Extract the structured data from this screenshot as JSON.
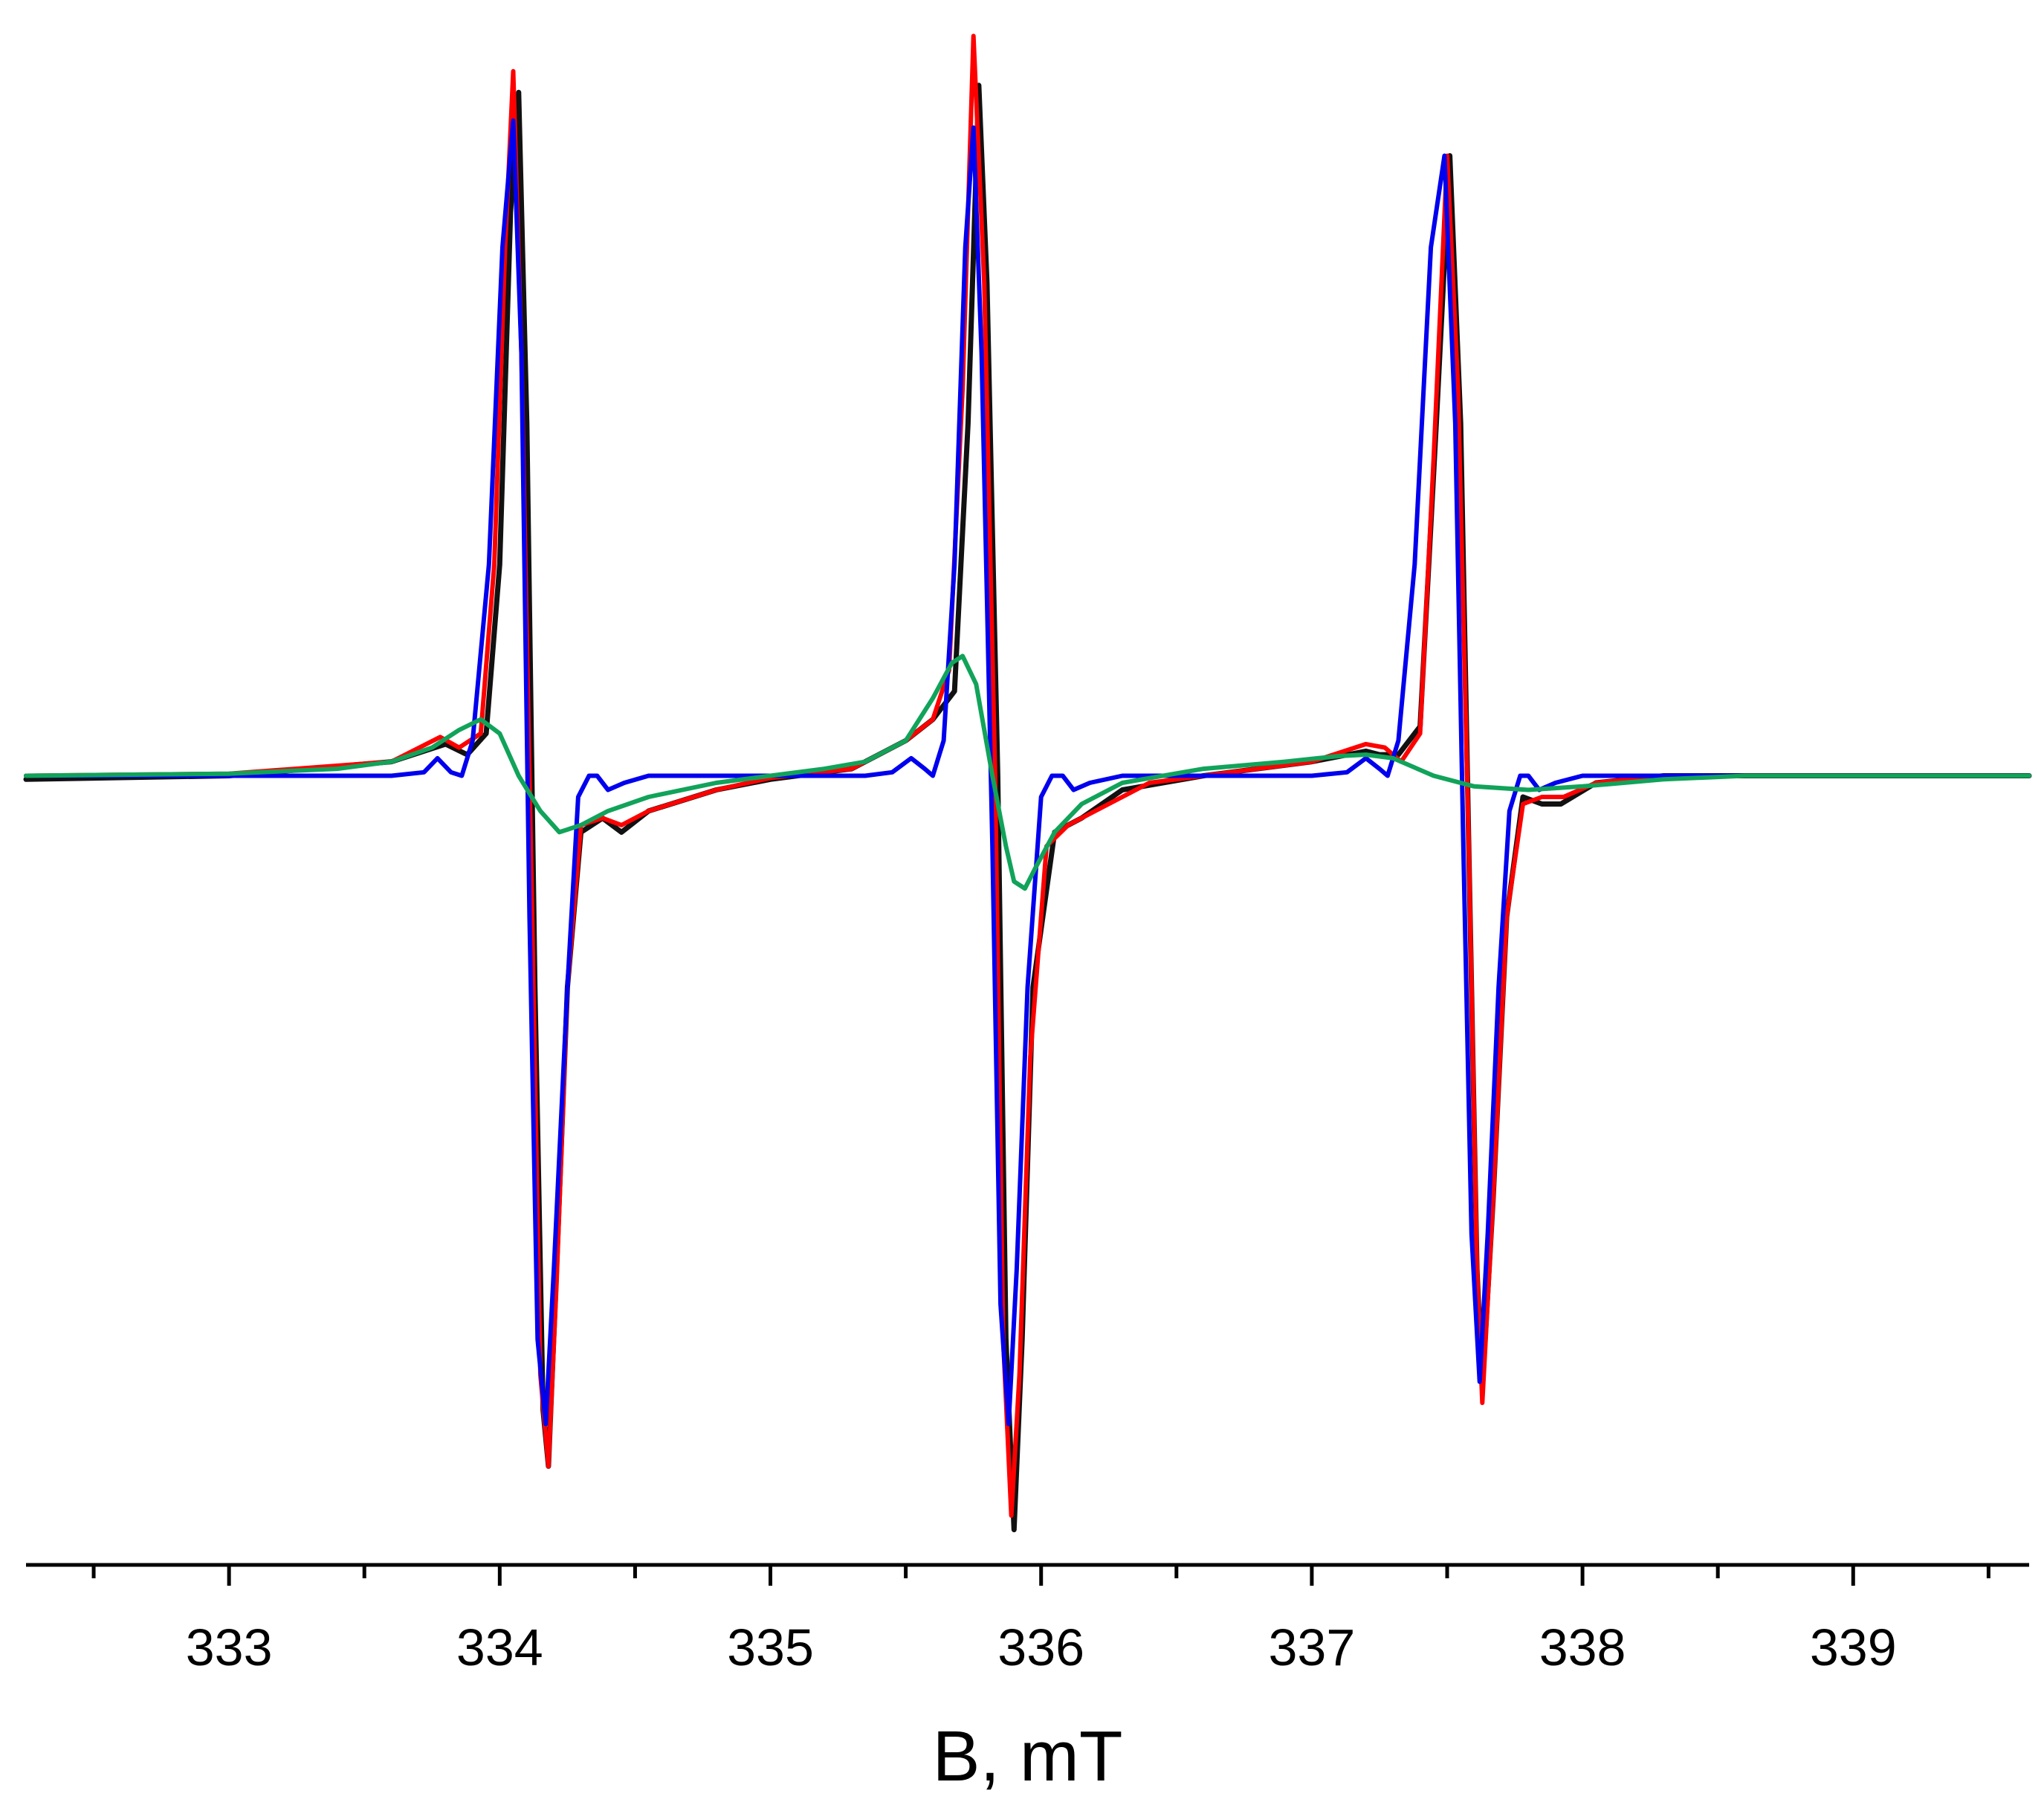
{
  "chart_data": {
    "type": "line",
    "title": "",
    "xlabel": "B, mT",
    "ylabel": "",
    "xlim": [
      332.25,
      339.65
    ],
    "ylim": [
      -1.12,
      1.08
    ],
    "grid": false,
    "legend": "none",
    "x_ticks": [
      333,
      334,
      335,
      336,
      337,
      338,
      339
    ],
    "x_tick_labels": [
      "333",
      "334",
      "335",
      "336",
      "337",
      "338",
      "339"
    ],
    "x_minor_ticks": [
      332.5,
      333.5,
      334.5,
      335.5,
      336.5,
      337.5,
      338.5,
      339.5
    ],
    "series": [
      {
        "key": "experimental",
        "color": "#111111",
        "points": [
          [
            332.25,
            -0.005
          ],
          [
            333.0,
            0.0
          ],
          [
            333.6,
            0.02
          ],
          [
            333.8,
            0.045
          ],
          [
            333.88,
            0.03
          ],
          [
            333.95,
            0.06
          ],
          [
            334.0,
            0.3
          ],
          [
            334.04,
            0.8
          ],
          [
            334.07,
            0.97
          ],
          [
            334.1,
            0.5
          ],
          [
            334.13,
            -0.3
          ],
          [
            334.16,
            -0.9
          ],
          [
            334.18,
            -0.98
          ],
          [
            334.21,
            -0.7
          ],
          [
            334.25,
            -0.3
          ],
          [
            334.3,
            -0.08
          ],
          [
            334.38,
            -0.06
          ],
          [
            334.45,
            -0.08
          ],
          [
            334.55,
            -0.05
          ],
          [
            334.8,
            -0.02
          ],
          [
            335.0,
            -0.005
          ],
          [
            335.3,
            0.01
          ],
          [
            335.5,
            0.05
          ],
          [
            335.6,
            0.08
          ],
          [
            335.68,
            0.12
          ],
          [
            335.73,
            0.5
          ],
          [
            335.77,
            0.98
          ],
          [
            335.8,
            0.7
          ],
          [
            335.84,
            0.0
          ],
          [
            335.87,
            -0.8
          ],
          [
            335.9,
            -1.07
          ],
          [
            335.93,
            -0.8
          ],
          [
            335.97,
            -0.3
          ],
          [
            336.05,
            -0.08
          ],
          [
            336.15,
            -0.06
          ],
          [
            336.3,
            -0.02
          ],
          [
            336.6,
            0.0
          ],
          [
            337.0,
            0.02
          ],
          [
            337.2,
            0.035
          ],
          [
            337.25,
            0.03
          ],
          [
            337.32,
            0.03
          ],
          [
            337.4,
            0.07
          ],
          [
            337.46,
            0.5
          ],
          [
            337.51,
            0.88
          ],
          [
            337.55,
            0.5
          ],
          [
            337.58,
            -0.1
          ],
          [
            337.61,
            -0.7
          ],
          [
            337.63,
            -0.87
          ],
          [
            337.67,
            -0.6
          ],
          [
            337.72,
            -0.2
          ],
          [
            337.78,
            -0.03
          ],
          [
            337.85,
            -0.04
          ],
          [
            337.92,
            -0.04
          ],
          [
            338.05,
            -0.01
          ],
          [
            338.3,
            0.0
          ],
          [
            339.0,
            0.0
          ],
          [
            339.65,
            0.0
          ]
        ]
      },
      {
        "key": "simulation-total",
        "color": "#ff0000",
        "points": [
          [
            332.25,
            0.0
          ],
          [
            333.0,
            0.003
          ],
          [
            333.6,
            0.02
          ],
          [
            333.78,
            0.055
          ],
          [
            333.85,
            0.04
          ],
          [
            333.93,
            0.06
          ],
          [
            333.98,
            0.3
          ],
          [
            334.02,
            0.75
          ],
          [
            334.05,
            1.0
          ],
          [
            334.08,
            0.6
          ],
          [
            334.12,
            -0.2
          ],
          [
            334.15,
            -0.85
          ],
          [
            334.18,
            -0.98
          ],
          [
            334.21,
            -0.72
          ],
          [
            334.25,
            -0.3
          ],
          [
            334.3,
            -0.07
          ],
          [
            334.38,
            -0.06
          ],
          [
            334.45,
            -0.07
          ],
          [
            334.55,
            -0.05
          ],
          [
            334.8,
            -0.02
          ],
          [
            335.0,
            -0.003
          ],
          [
            335.3,
            0.01
          ],
          [
            335.5,
            0.05
          ],
          [
            335.6,
            0.08
          ],
          [
            335.66,
            0.15
          ],
          [
            335.71,
            0.55
          ],
          [
            335.75,
            1.05
          ],
          [
            335.79,
            0.7
          ],
          [
            335.83,
            0.0
          ],
          [
            335.86,
            -0.8
          ],
          [
            335.89,
            -1.05
          ],
          [
            335.92,
            -0.85
          ],
          [
            335.96,
            -0.4
          ],
          [
            336.02,
            -0.1
          ],
          [
            336.1,
            -0.07
          ],
          [
            336.2,
            -0.05
          ],
          [
            336.4,
            -0.01
          ],
          [
            337.0,
            0.02
          ],
          [
            337.2,
            0.045
          ],
          [
            337.27,
            0.04
          ],
          [
            337.33,
            0.02
          ],
          [
            337.4,
            0.06
          ],
          [
            337.45,
            0.45
          ],
          [
            337.5,
            0.88
          ],
          [
            337.54,
            0.55
          ],
          [
            337.58,
            -0.1
          ],
          [
            337.61,
            -0.7
          ],
          [
            337.63,
            -0.89
          ],
          [
            337.67,
            -0.6
          ],
          [
            337.72,
            -0.2
          ],
          [
            337.78,
            -0.04
          ],
          [
            337.85,
            -0.03
          ],
          [
            337.93,
            -0.03
          ],
          [
            338.05,
            -0.01
          ],
          [
            338.3,
            0.0
          ],
          [
            339.65,
            0.0
          ]
        ]
      },
      {
        "key": "simulation-component-blue",
        "color": "#0000ee",
        "points": [
          [
            332.25,
            0.0
          ],
          [
            333.6,
            0.0
          ],
          [
            333.72,
            0.005
          ],
          [
            333.77,
            0.025
          ],
          [
            333.82,
            0.005
          ],
          [
            333.86,
            0.0
          ],
          [
            333.9,
            0.05
          ],
          [
            333.96,
            0.3
          ],
          [
            334.01,
            0.75
          ],
          [
            334.05,
            0.93
          ],
          [
            334.08,
            0.6
          ],
          [
            334.11,
            -0.2
          ],
          [
            334.14,
            -0.8
          ],
          [
            334.17,
            -0.92
          ],
          [
            334.2,
            -0.7
          ],
          [
            334.25,
            -0.3
          ],
          [
            334.29,
            -0.03
          ],
          [
            334.33,
            0.0
          ],
          [
            334.36,
            0.0
          ],
          [
            334.4,
            -0.02
          ],
          [
            334.46,
            -0.01
          ],
          [
            334.55,
            0.0
          ],
          [
            335.35,
            0.0
          ],
          [
            335.45,
            0.005
          ],
          [
            335.52,
            0.025
          ],
          [
            335.57,
            0.01
          ],
          [
            335.6,
            0.0
          ],
          [
            335.64,
            0.05
          ],
          [
            335.68,
            0.3
          ],
          [
            335.72,
            0.75
          ],
          [
            335.75,
            0.92
          ],
          [
            335.78,
            0.6
          ],
          [
            335.82,
            -0.1
          ],
          [
            335.85,
            -0.75
          ],
          [
            335.88,
            -0.92
          ],
          [
            335.91,
            -0.7
          ],
          [
            335.95,
            -0.3
          ],
          [
            336.0,
            -0.03
          ],
          [
            336.04,
            0.0
          ],
          [
            336.08,
            0.0
          ],
          [
            336.12,
            -0.02
          ],
          [
            336.18,
            -0.01
          ],
          [
            336.3,
            0.0
          ],
          [
            337.0,
            0.0
          ],
          [
            337.13,
            0.005
          ],
          [
            337.2,
            0.025
          ],
          [
            337.25,
            0.01
          ],
          [
            337.28,
            0.0
          ],
          [
            337.32,
            0.05
          ],
          [
            337.38,
            0.3
          ],
          [
            337.44,
            0.75
          ],
          [
            337.49,
            0.88
          ],
          [
            337.53,
            0.5
          ],
          [
            337.56,
            -0.1
          ],
          [
            337.59,
            -0.65
          ],
          [
            337.62,
            -0.86
          ],
          [
            337.65,
            -0.65
          ],
          [
            337.69,
            -0.3
          ],
          [
            337.73,
            -0.05
          ],
          [
            337.77,
            0.0
          ],
          [
            337.8,
            0.0
          ],
          [
            337.84,
            -0.02
          ],
          [
            337.9,
            -0.01
          ],
          [
            338.0,
            0.0
          ],
          [
            339.65,
            0.0
          ]
        ]
      },
      {
        "key": "simulation-component-green",
        "color": "#11a35a",
        "points": [
          [
            332.25,
            0.0
          ],
          [
            333.0,
            0.003
          ],
          [
            333.4,
            0.01
          ],
          [
            333.6,
            0.02
          ],
          [
            333.75,
            0.04
          ],
          [
            333.85,
            0.065
          ],
          [
            333.93,
            0.08
          ],
          [
            334.0,
            0.06
          ],
          [
            334.07,
            0.0
          ],
          [
            334.15,
            -0.05
          ],
          [
            334.22,
            -0.08
          ],
          [
            334.3,
            -0.07
          ],
          [
            334.4,
            -0.05
          ],
          [
            334.55,
            -0.03
          ],
          [
            334.8,
            -0.01
          ],
          [
            335.0,
            0.0
          ],
          [
            335.2,
            0.01
          ],
          [
            335.35,
            0.02
          ],
          [
            335.5,
            0.05
          ],
          [
            335.6,
            0.11
          ],
          [
            335.67,
            0.16
          ],
          [
            335.71,
            0.17
          ],
          [
            335.76,
            0.13
          ],
          [
            335.82,
            0.0
          ],
          [
            335.87,
            -0.1
          ],
          [
            335.9,
            -0.15
          ],
          [
            335.94,
            -0.16
          ],
          [
            335.98,
            -0.13
          ],
          [
            336.05,
            -0.08
          ],
          [
            336.15,
            -0.04
          ],
          [
            336.3,
            -0.01
          ],
          [
            336.6,
            0.01
          ],
          [
            336.9,
            0.02
          ],
          [
            337.1,
            0.028
          ],
          [
            337.2,
            0.03
          ],
          [
            337.3,
            0.025
          ],
          [
            337.45,
            0.0
          ],
          [
            337.6,
            -0.015
          ],
          [
            337.8,
            -0.02
          ],
          [
            338.0,
            -0.015
          ],
          [
            338.3,
            -0.005
          ],
          [
            338.6,
            0.0
          ],
          [
            339.65,
            0.0
          ]
        ]
      }
    ]
  }
}
